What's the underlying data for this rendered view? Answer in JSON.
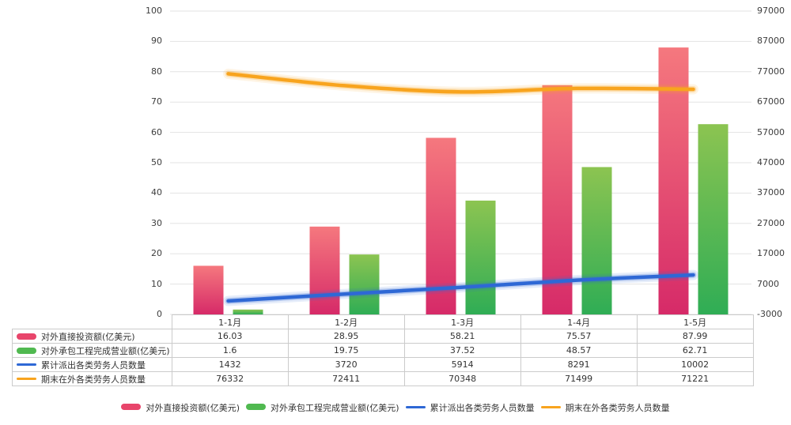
{
  "chart_data": {
    "type": "bar",
    "subtype": "combo-bar-line-dual-axis",
    "categories": [
      "1-1月",
      "1-2月",
      "1-3月",
      "1-4月",
      "1-5月"
    ],
    "series": [
      {
        "name": "对外直接投资额(亿美元)",
        "type": "bar",
        "axis": "left",
        "values": [
          16.03,
          28.95,
          58.21,
          75.57,
          87.99
        ],
        "gradient_top": "#f5787e",
        "gradient_bottom": "#d62a68",
        "legend_color": "#e8456b"
      },
      {
        "name": "对外承包工程完成营业额(亿美元)",
        "type": "bar",
        "axis": "left",
        "values": [
          1.6,
          19.75,
          37.52,
          48.57,
          62.71
        ],
        "gradient_top": "#8cc451",
        "gradient_bottom": "#2fad55",
        "legend_color": "#50b950"
      },
      {
        "name": "累计派出各类劳务人员数量",
        "type": "line",
        "axis": "right",
        "values": [
          1432,
          3720,
          5914,
          8291,
          10002
        ],
        "color": "#2e68d5"
      },
      {
        "name": "期末在外各类劳务人员数量",
        "type": "line",
        "axis": "right",
        "values": [
          76332,
          72411,
          70348,
          71499,
          71221
        ],
        "color": "#f8a41e"
      }
    ],
    "left_axis": {
      "min": 0,
      "max": 100,
      "step": 10,
      "labels": [
        "100",
        "90",
        "80",
        "70",
        "60",
        "50",
        "40",
        "30",
        "20",
        "10",
        "0"
      ]
    },
    "right_axis": {
      "min": -3000,
      "max": 97000,
      "step": 10000,
      "labels": [
        "97000",
        "87000",
        "77000",
        "67000",
        "57000",
        "47000",
        "37000",
        "27000",
        "17000",
        "7000",
        "-3000"
      ]
    },
    "grid": "horizontal",
    "legend_position": "bottom"
  },
  "colors": {
    "background": "#ffffff",
    "gridline": "#e3e3e3",
    "table_border": "#cbcbcb",
    "text": "#333333"
  }
}
